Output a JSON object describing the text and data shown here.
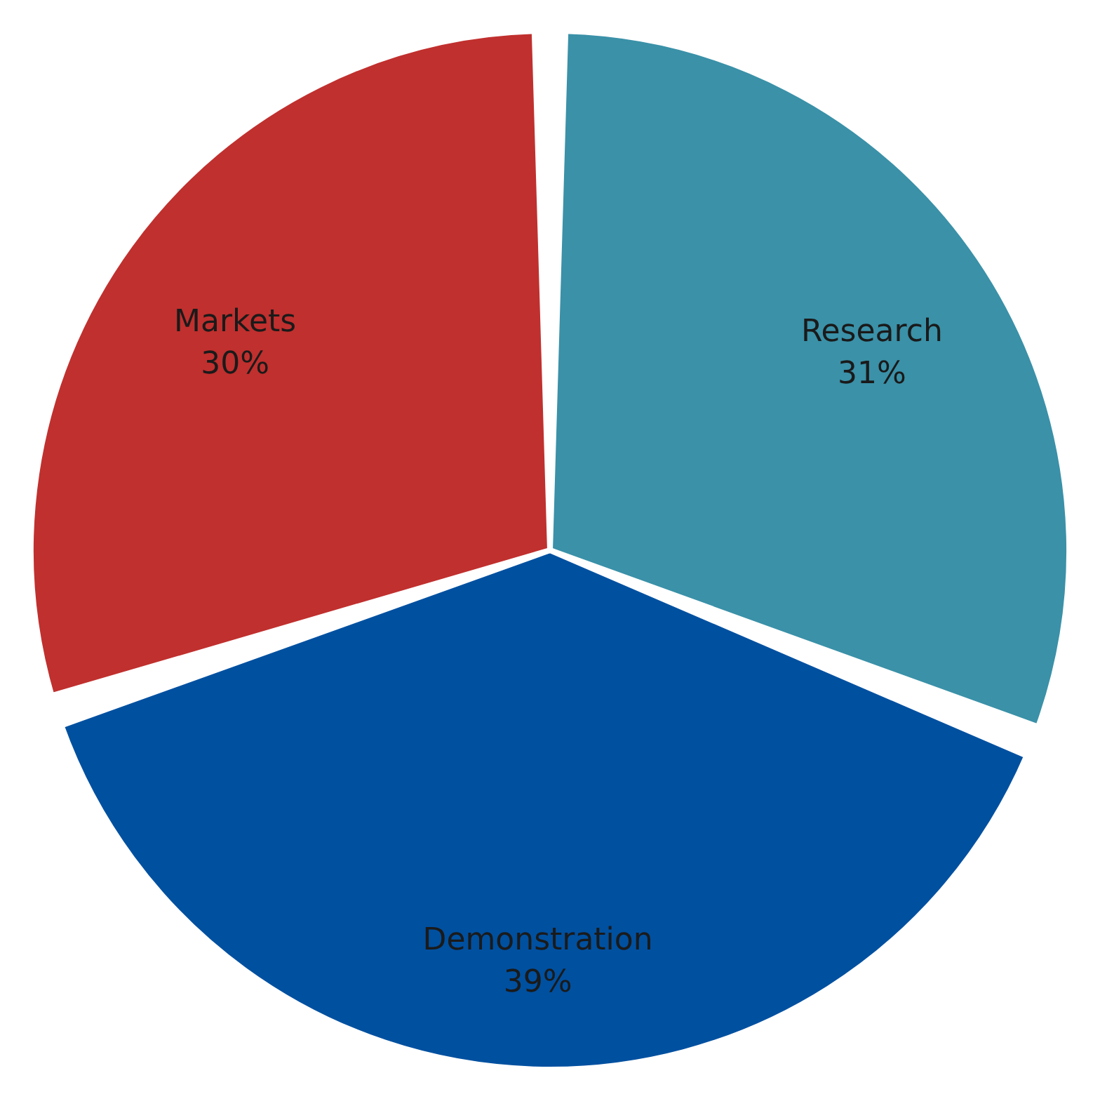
{
  "chart_data": {
    "type": "pie",
    "categories": [
      "Research",
      "Demonstration",
      "Markets"
    ],
    "values": [
      31,
      39,
      30
    ],
    "value_labels": [
      "31%",
      "39%",
      "30%"
    ],
    "colors": [
      "#3a91a8",
      "#0050a0",
      "#c0302e"
    ]
  }
}
